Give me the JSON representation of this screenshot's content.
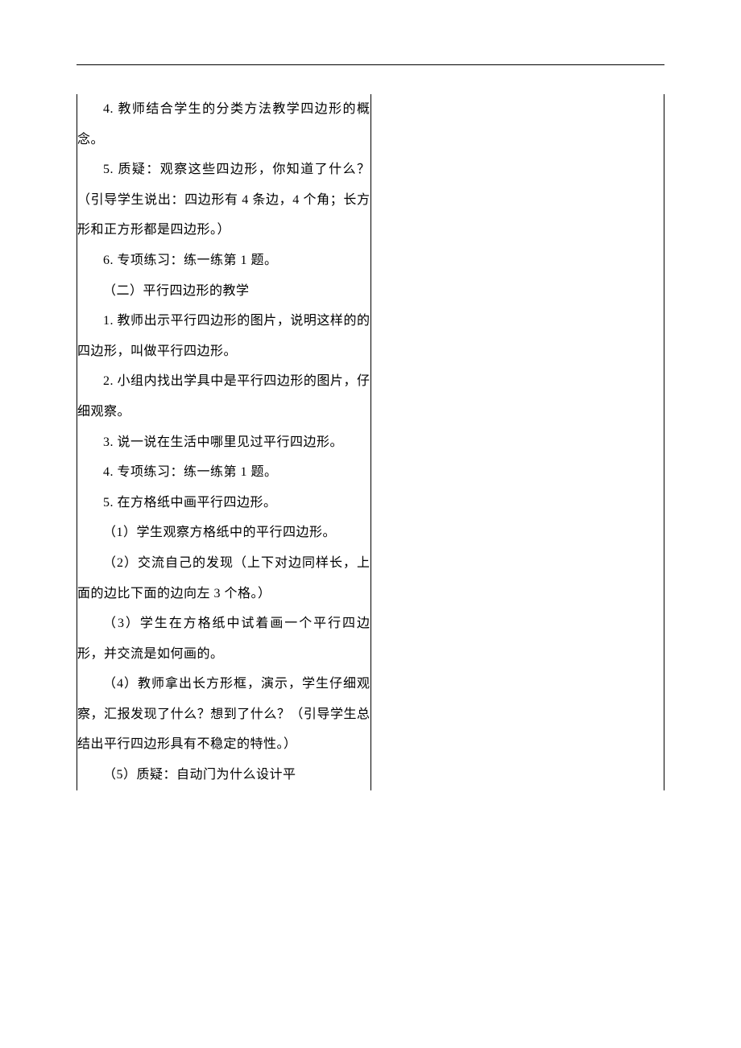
{
  "left_column": {
    "paragraphs": [
      "4. 教师结合学生的分类方法教学四边形的概念。",
      "5. 质疑：观察这些四边形，你知道了什么？（引导学生说出：四边形有 4 条边，4 个角；长方形和正方形都是四边形。）",
      "6. 专项练习：练一练第 1 题。",
      "（二）平行四边形的教学",
      "1. 教师出示平行四边形的图片，说明这样的的四边形，叫做平行四边形。",
      "2. 小组内找出学具中是平行四边形的图片，仔细观察。",
      "3. 说一说在生活中哪里见过平行四边形。",
      "4. 专项练习：练一练第 1 题。",
      "5. 在方格纸中画平行四边形。",
      "（1）学生观察方格纸中的平行四边形。",
      "（2）交流自己的发现（上下对边同样长，上面的边比下面的边向左 3 个格。）",
      "（3）学生在方格纸中试着画一个平行四边形，并交流是如何画的。",
      "（4）教师拿出长方形框，演示，学生仔细观察，汇报发现了什么？想到了什么？（引导学生总结出平行四边形具有不稳定的特性。）",
      "（5）质疑：自动门为什么设计平"
    ]
  },
  "right_column": {
    "paragraphs": []
  }
}
